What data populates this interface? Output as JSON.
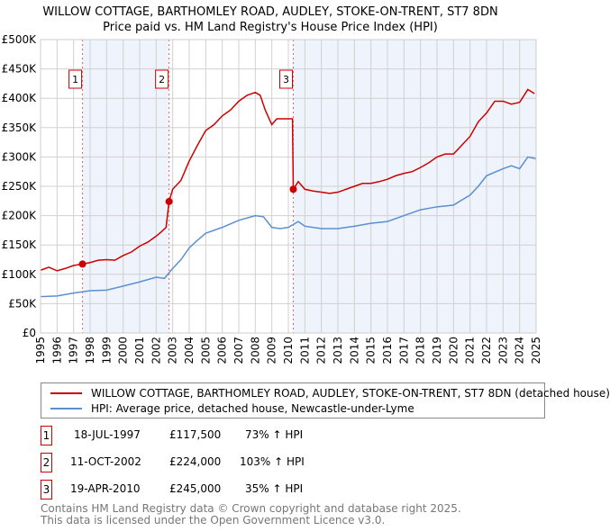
{
  "chart_data": {
    "type": "line",
    "title": "WILLOW COTTAGE, BARTHOMLEY ROAD, AUDLEY, STOKE-ON-TRENT, ST7 8DN",
    "subtitle": "Price paid vs. HM Land Registry's House Price Index (HPI)",
    "xlim": [
      1995,
      2025
    ],
    "ylim": [
      0,
      500000
    ],
    "x_ticks": [
      "1995",
      "1996",
      "1997",
      "1998",
      "1999",
      "2000",
      "2001",
      "2002",
      "2003",
      "2004",
      "2005",
      "2006",
      "2007",
      "2008",
      "2009",
      "2010",
      "2011",
      "2012",
      "2013",
      "2014",
      "2015",
      "2016",
      "2017",
      "2018",
      "2019",
      "2020",
      "2021",
      "2022",
      "2023",
      "2024",
      "2025"
    ],
    "y_ticks": [
      {
        "v": 0,
        "label": "£0"
      },
      {
        "v": 50000,
        "label": "£50K"
      },
      {
        "v": 100000,
        "label": "£100K"
      },
      {
        "v": 150000,
        "label": "£150K"
      },
      {
        "v": 200000,
        "label": "£200K"
      },
      {
        "v": 250000,
        "label": "£250K"
      },
      {
        "v": 300000,
        "label": "£300K"
      },
      {
        "v": 350000,
        "label": "£350K"
      },
      {
        "v": 400000,
        "label": "£400K"
      },
      {
        "v": 450000,
        "label": "£450K"
      },
      {
        "v": 500000,
        "label": "£500K"
      }
    ],
    "grid": true,
    "shaded_ranges": [
      [
        1997.54,
        2002.78
      ],
      [
        2010.3,
        2025
      ]
    ],
    "series": [
      {
        "name": "WILLOW COTTAGE, BARTHOMLEY ROAD, AUDLEY, STOKE-ON-TRENT, ST7 8DN (detached house)",
        "color": "#cc0000",
        "x": [
          1995,
          1995.5,
          1996,
          1996.5,
          1997,
          1997.54,
          1998,
          1998.5,
          1999,
          1999.5,
          2000,
          2000.5,
          2001,
          2001.5,
          2002,
          2002.3,
          2002.6,
          2002.78,
          2003,
          2003.5,
          2004,
          2004.5,
          2005,
          2005.5,
          2006,
          2006.5,
          2007,
          2007.5,
          2008,
          2008.3,
          2008.6,
          2009,
          2009.3,
          2009.8,
          2010.25,
          2010.3,
          2010.6,
          2011,
          2011.5,
          2012,
          2012.5,
          2013,
          2013.5,
          2014,
          2014.5,
          2015,
          2015.5,
          2016,
          2016.5,
          2017,
          2017.5,
          2018,
          2018.5,
          2019,
          2019.5,
          2020,
          2020.5,
          2021,
          2021.5,
          2022,
          2022.5,
          2023,
          2023.5,
          2024,
          2024.5,
          2024.9
        ],
        "y": [
          107000,
          112000,
          106000,
          110000,
          115000,
          117500,
          120000,
          124000,
          125000,
          124000,
          132000,
          138000,
          148000,
          155000,
          165000,
          172000,
          180000,
          224000,
          245000,
          260000,
          293000,
          320000,
          345000,
          355000,
          370000,
          380000,
          395000,
          405000,
          410000,
          405000,
          380000,
          355000,
          365000,
          365000,
          365000,
          245000,
          258000,
          245000,
          242000,
          240000,
          238000,
          240000,
          245000,
          250000,
          255000,
          255000,
          258000,
          262000,
          268000,
          272000,
          275000,
          282000,
          290000,
          300000,
          305000,
          305000,
          320000,
          335000,
          360000,
          375000,
          395000,
          395000,
          390000,
          393000,
          415000,
          408000
        ]
      },
      {
        "name": "HPI: Average price, detached house, Newcastle-under-Lyme",
        "color": "#5b8fd0",
        "x": [
          1995,
          1996,
          1997,
          1998,
          1999,
          2000,
          2001,
          2002,
          2002.5,
          2003,
          2003.5,
          2004,
          2004.5,
          2005,
          2006,
          2007,
          2008,
          2008.5,
          2009,
          2009.5,
          2010,
          2010.6,
          2011,
          2012,
          2013,
          2014,
          2015,
          2016,
          2017,
          2018,
          2019,
          2020,
          2021,
          2021.5,
          2022,
          2023,
          2023.5,
          2024,
          2024.5,
          2025
        ],
        "y": [
          62000,
          63000,
          68000,
          72000,
          73000,
          80000,
          87000,
          95000,
          93000,
          110000,
          125000,
          145000,
          158000,
          170000,
          180000,
          192000,
          200000,
          198000,
          180000,
          178000,
          180000,
          190000,
          182000,
          178000,
          178000,
          182000,
          187000,
          190000,
          200000,
          210000,
          215000,
          218000,
          235000,
          250000,
          268000,
          280000,
          285000,
          280000,
          300000,
          297000
        ]
      }
    ],
    "sales": [
      {
        "id": "1",
        "x": 1997.54,
        "price": 117500,
        "date": "18-JUL-1997",
        "price_label": "£117,500",
        "hpi": "73% ↑ HPI"
      },
      {
        "id": "2",
        "x": 2002.78,
        "price": 224000,
        "date": "11-OCT-2002",
        "price_label": "£224,000",
        "hpi": "103% ↑ HPI"
      },
      {
        "id": "3",
        "x": 2010.3,
        "price": 245000,
        "date": "19-APR-2010",
        "price_label": "£245,000",
        "hpi": "35% ↑ HPI"
      }
    ]
  },
  "legend": {
    "red": "WILLOW COTTAGE, BARTHOMLEY ROAD, AUDLEY, STOKE-ON-TRENT, ST7 8DN (detached house)",
    "blue": "HPI: Average price, detached house, Newcastle-under-Lyme"
  },
  "footer": {
    "line1": "Contains HM Land Registry data © Crown copyright and database right 2025.",
    "line2": "This data is licensed under the Open Government Licence v3.0."
  }
}
